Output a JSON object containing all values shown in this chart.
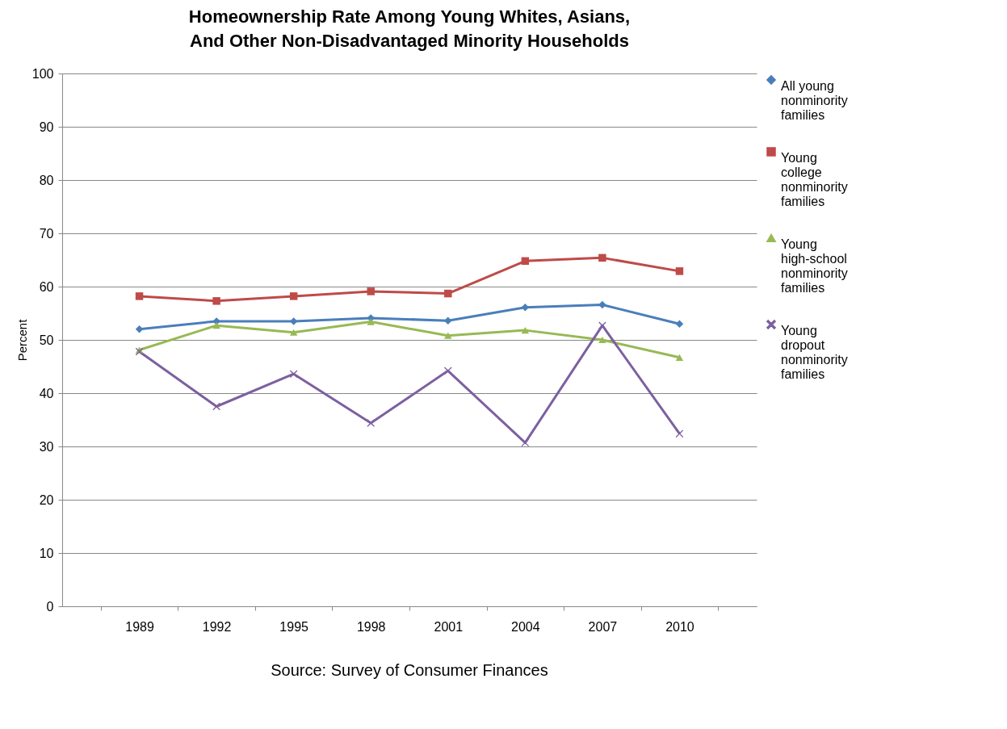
{
  "chart_data": {
    "type": "line",
    "title": "Homeownership Rate Among Young Whites, Asians, And Other Non-Disadvantaged Minority Households",
    "ylabel": "Percent",
    "categories": [
      "1989",
      "1992",
      "1995",
      "1998",
      "2001",
      "2004",
      "2007",
      "2010"
    ],
    "ylim": [
      0,
      100
    ],
    "yticks": [
      0,
      10,
      20,
      30,
      40,
      50,
      60,
      70,
      80,
      90,
      100
    ],
    "grid": "y",
    "legend": "right",
    "annotations": [
      "Source:  Survey of Consumer Finances"
    ],
    "series": [
      {
        "name": "All young nonminority families",
        "color": "#4a7ebb",
        "marker": "diamond",
        "values": [
          52.0,
          53.5,
          53.5,
          54.1,
          53.6,
          56.1,
          56.6,
          53.0
        ]
      },
      {
        "name": "Young college nonminority families",
        "color": "#be4b48",
        "marker": "square",
        "values": [
          58.2,
          57.3,
          58.2,
          59.1,
          58.7,
          64.8,
          65.4,
          62.9
        ]
      },
      {
        "name": "Young high-school nonminority families",
        "color": "#98b954",
        "marker": "triangle",
        "values": [
          48.1,
          52.7,
          51.4,
          53.4,
          50.8,
          51.8,
          50.0,
          46.7
        ]
      },
      {
        "name": "Young dropout nonminority families",
        "color": "#7d60a0",
        "marker": "cross",
        "values": [
          47.8,
          37.5,
          43.6,
          34.4,
          44.2,
          30.7,
          52.7,
          32.4
        ]
      }
    ]
  }
}
